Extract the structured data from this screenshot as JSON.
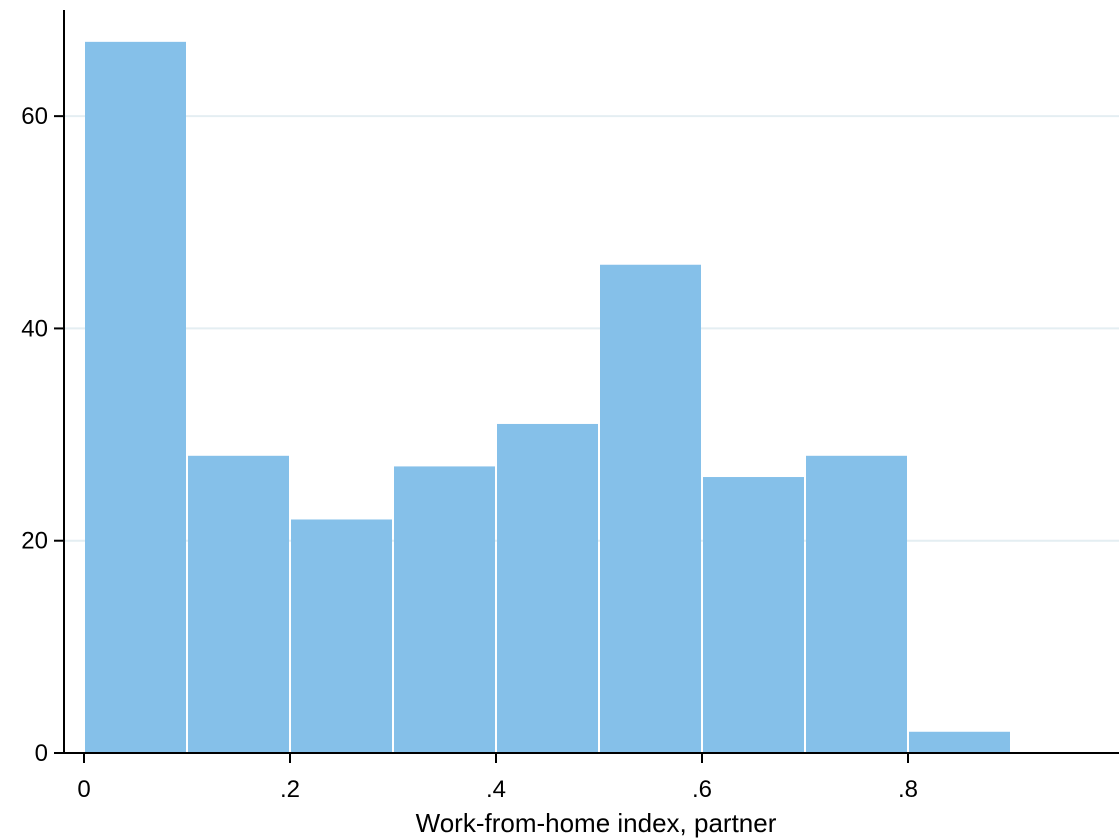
{
  "chart_data": {
    "type": "bar",
    "title": "",
    "xlabel": "Work-from-home index, partner",
    "ylabel": "",
    "bins": [
      {
        "x0": 0.0,
        "x1": 0.1,
        "value": 67
      },
      {
        "x0": 0.1,
        "x1": 0.2,
        "value": 28
      },
      {
        "x0": 0.2,
        "x1": 0.3,
        "value": 22
      },
      {
        "x0": 0.3,
        "x1": 0.4,
        "value": 27
      },
      {
        "x0": 0.4,
        "x1": 0.5,
        "value": 31
      },
      {
        "x0": 0.5,
        "x1": 0.6,
        "value": 46
      },
      {
        "x0": 0.6,
        "x1": 0.7,
        "value": 26
      },
      {
        "x0": 0.7,
        "x1": 0.8,
        "value": 28
      },
      {
        "x0": 0.8,
        "x1": 0.9,
        "value": 2
      }
    ],
    "xlim": [
      -0.01,
      1.0
    ],
    "ylim": [
      0,
      70
    ],
    "xticks": [
      {
        "value": 0,
        "label": "0"
      },
      {
        "value": 0.2,
        "label": ".2"
      },
      {
        "value": 0.4,
        "label": ".4"
      },
      {
        "value": 0.6,
        "label": ".6"
      },
      {
        "value": 0.8,
        "label": ".8"
      }
    ],
    "yticks": [
      {
        "value": 0,
        "label": "0"
      },
      {
        "value": 20,
        "label": "20"
      },
      {
        "value": 40,
        "label": "40"
      },
      {
        "value": 60,
        "label": "60"
      }
    ],
    "grid": "horizontal",
    "bar_color": "#85c0e9",
    "grid_color": "#e4eef2",
    "axis_color": "#000000",
    "background": "#ffffff"
  }
}
